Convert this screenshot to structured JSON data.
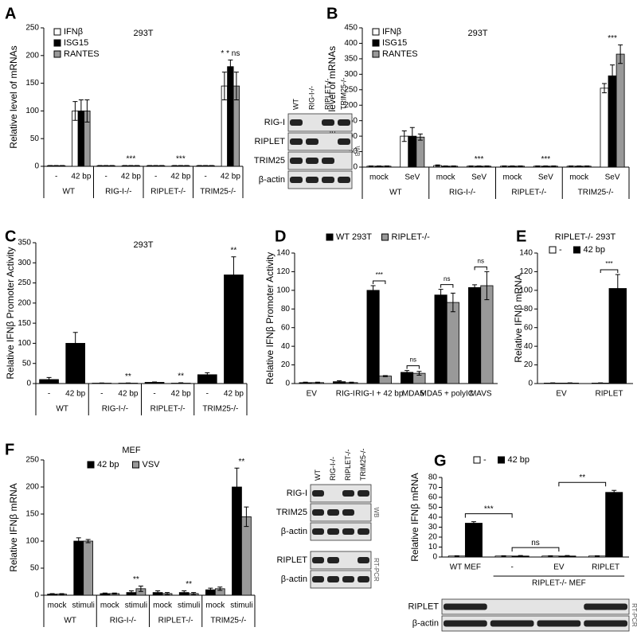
{
  "chart_data": [
    {
      "label": "A",
      "type": "bar",
      "title": "293T",
      "y_label": "Relative level of mRNAs",
      "categories": [
        "-",
        "42 bp",
        "-",
        "42 bp",
        "-",
        "42 bp",
        "-",
        "42 bp"
      ],
      "groups": [
        "WT",
        "RIG-I-/-",
        "RIPLET-/-",
        "TRIM25-/-"
      ],
      "series": [
        {
          "name": "IFNβ",
          "color": "#ffffff",
          "values": [
            1,
            100,
            1,
            1,
            1,
            1,
            1,
            145
          ],
          "errors": [
            0.5,
            17,
            0.5,
            0.5,
            0.5,
            0.5,
            0.5,
            25
          ]
        },
        {
          "name": "ISG15",
          "color": "#000000",
          "values": [
            1,
            100,
            1,
            1,
            1,
            1,
            1,
            180
          ],
          "errors": [
            0.5,
            20,
            0.5,
            0.5,
            0.5,
            0.5,
            0.5,
            12
          ]
        },
        {
          "name": "RANTES",
          "color": "#999999",
          "values": [
            1,
            100,
            1,
            1,
            1,
            1,
            1,
            145
          ],
          "errors": [
            0.5,
            20,
            0.5,
            0.5,
            0.5,
            0.5,
            0.5,
            25
          ]
        }
      ],
      "ylim": [
        0,
        250
      ],
      "yticks": [
        0,
        50,
        100,
        150,
        200,
        250
      ],
      "annotations": [
        {
          "text": "***",
          "category": 3
        },
        {
          "text": "***",
          "category": 5
        },
        {
          "text": "* * ns",
          "category": 7
        }
      ]
    },
    {
      "label": "B",
      "type": "bar",
      "title": "293T",
      "y_label": "Relative level of mRNAs",
      "categories": [
        "mock",
        "SeV",
        "mock",
        "SeV",
        "mock",
        "SeV",
        "mock",
        "SeV"
      ],
      "groups": [
        "WT",
        "RIG-I-/-",
        "RIPLET-/-",
        "TRIM25-/-"
      ],
      "series": [
        {
          "name": "IFNβ",
          "color": "#ffffff",
          "values": [
            3,
            100,
            5,
            3,
            3,
            3,
            3,
            255
          ],
          "errors": [
            1,
            17,
            2,
            1,
            1,
            1,
            1,
            15
          ]
        },
        {
          "name": "ISG15",
          "color": "#000000",
          "values": [
            3,
            100,
            3,
            3,
            3,
            3,
            3,
            295
          ],
          "errors": [
            1,
            28,
            1,
            1,
            1,
            1,
            1,
            35
          ]
        },
        {
          "name": "RANTES",
          "color": "#999999",
          "values": [
            3,
            97,
            3,
            3,
            3,
            3,
            3,
            365
          ],
          "errors": [
            1,
            10,
            1,
            1,
            1,
            1,
            1,
            30
          ]
        }
      ],
      "ylim": [
        0,
        450
      ],
      "yticks": [
        0,
        50,
        100,
        150,
        200,
        250,
        300,
        350,
        400,
        450
      ],
      "annotations": [
        {
          "text": "***",
          "category": 3
        },
        {
          "text": "***",
          "category": 5
        },
        {
          "text": "***",
          "category": 7
        }
      ]
    },
    {
      "label": "C",
      "type": "bar",
      "title": "293T",
      "y_label": "Relative IFNβ Promoter Activity",
      "categories": [
        "-",
        "42 bp",
        "-",
        "42 bp",
        "-",
        "42 bp",
        "-",
        "42 bp"
      ],
      "groups": [
        "WT",
        "RIG-I-/-",
        "RIPLET-/-",
        "TRIM25-/-"
      ],
      "series": [
        {
          "color": "#000000",
          "values": [
            10,
            100,
            1,
            1,
            3,
            1,
            22,
            270
          ],
          "errors": [
            5,
            27,
            0.5,
            0.5,
            1,
            1,
            5,
            45
          ]
        }
      ],
      "ylim": [
        0,
        350
      ],
      "yticks": [
        0,
        50,
        100,
        150,
        200,
        250,
        300,
        350
      ],
      "annotations": [
        {
          "text": "**",
          "category": 3
        },
        {
          "text": "**",
          "category": 5
        },
        {
          "text": "**",
          "category": 7
        }
      ]
    },
    {
      "label": "D",
      "type": "bar",
      "y_label": "Relative IFNβ Promoter Activity",
      "categories": [
        "EV",
        "RIG-I",
        "RIG-I + 42 bp",
        "MDA5",
        "MDA5 + polyIC",
        "MAVS"
      ],
      "series": [
        {
          "name": "WT 293T",
          "color": "#000000",
          "values": [
            1,
            2,
            100,
            12,
            95,
            103
          ],
          "errors": [
            0.5,
            1,
            5,
            2,
            6,
            3
          ]
        },
        {
          "name": "RIPLET-/-",
          "color": "#999999",
          "values": [
            1,
            1,
            8,
            11,
            87,
            105
          ],
          "errors": [
            0.5,
            0.5,
            0.5,
            2,
            10,
            15
          ]
        }
      ],
      "ylim": [
        0,
        140
      ],
      "yticks": [
        0,
        20,
        40,
        60,
        80,
        100,
        120,
        140
      ],
      "annotations": [
        {
          "text": "***",
          "category": 2
        },
        {
          "text": "ns",
          "category": 3
        },
        {
          "text": "ns",
          "category": 4
        },
        {
          "text": "ns",
          "category": 5
        }
      ]
    },
    {
      "label": "E",
      "type": "bar",
      "title": "RIPLET-/- 293T",
      "y_label": "Relative IFNβ mRNA",
      "categories": [
        "EV",
        "RIPLET"
      ],
      "series": [
        {
          "name": "-",
          "color": "#ffffff",
          "values": [
            0.5,
            0.5
          ],
          "errors": [
            0.2,
            0.2
          ]
        },
        {
          "name": "42 bp",
          "color": "#000000",
          "values": [
            0.5,
            102
          ],
          "errors": [
            0.2,
            15
          ]
        }
      ],
      "ylim": [
        0,
        140
      ],
      "yticks": [
        0,
        20,
        40,
        60,
        80,
        100,
        120,
        140
      ],
      "annotations": [
        {
          "text": "***",
          "category": 1
        }
      ]
    },
    {
      "label": "F",
      "type": "bar",
      "title": "MEF",
      "y_label": "Relative IFNβ mRNA",
      "categories": [
        "mock",
        "stimuli",
        "mock",
        "stimuli",
        "mock",
        "stimuli",
        "mock",
        "stimuli"
      ],
      "groups": [
        "WT",
        "RIG-I-/-",
        "RIPLET-/-",
        "TRIM25-/-"
      ],
      "series": [
        {
          "name": "42 bp",
          "color": "#000000",
          "values": [
            2,
            100,
            3,
            5,
            5,
            5,
            10,
            200
          ],
          "errors": [
            1,
            6,
            1,
            3,
            3,
            3,
            3,
            35
          ]
        },
        {
          "name": "VSV",
          "color": "#999999",
          "values": [
            2,
            100,
            3,
            12,
            3,
            3,
            12,
            145
          ],
          "errors": [
            1,
            3,
            1,
            5,
            2,
            2,
            3,
            18
          ]
        }
      ],
      "ylim": [
        0,
        250
      ],
      "yticks": [
        0,
        50,
        100,
        150,
        200,
        250
      ],
      "annotations": [
        {
          "text": "**",
          "category": 3
        },
        {
          "text": "**",
          "category": 5
        },
        {
          "text": "**",
          "category": 7
        }
      ]
    },
    {
      "label": "G",
      "type": "bar",
      "y_label": "Relative IFNβ mRNA",
      "categories": [
        "WT MEF",
        "-",
        "EV",
        "RIPLET"
      ],
      "group": "RIPLET-/- MEF",
      "series": [
        {
          "name": "-",
          "color": "#ffffff",
          "values": [
            1,
            1,
            1,
            1
          ],
          "errors": [
            0.3,
            0.3,
            0.3,
            0.3
          ]
        },
        {
          "name": "42 bp",
          "color": "#000000",
          "values": [
            34,
            1,
            1,
            65
          ],
          "errors": [
            1.5,
            0.5,
            0.5,
            2
          ]
        }
      ],
      "ylim": [
        0,
        80
      ],
      "yticks": [
        0,
        10,
        20,
        30,
        40,
        50,
        60,
        70,
        80
      ],
      "annotations": [
        {
          "text": "***",
          "category": 0
        },
        {
          "text": "ns",
          "category": 1
        },
        {
          "text": "**",
          "category": 2
        }
      ]
    }
  ],
  "blots": [
    {
      "columns": [
        "WT",
        "RIG-I-/-",
        "RIPLET-/-",
        "TRIM25-/-"
      ],
      "sections": [
        {
          "rows": [
            "RIG-I",
            "RIPLET",
            "TRIM25",
            "β-actin"
          ],
          "method": "WB"
        }
      ]
    },
    {
      "columns": [
        "WT",
        "RIG-I-/-",
        "RIPLET-/-",
        "TRIM25-/-"
      ],
      "sections": [
        {
          "rows": [
            "RIG-I",
            "TRIM25",
            "β-actin"
          ],
          "method": "WB"
        },
        {
          "rows": [
            "RIPLET",
            "β-actin"
          ],
          "method": "RT-PCR"
        }
      ]
    },
    {
      "sections": [
        {
          "rows": [
            "RIPLET",
            "β-actin"
          ],
          "method": "RT-PCR"
        }
      ]
    }
  ]
}
